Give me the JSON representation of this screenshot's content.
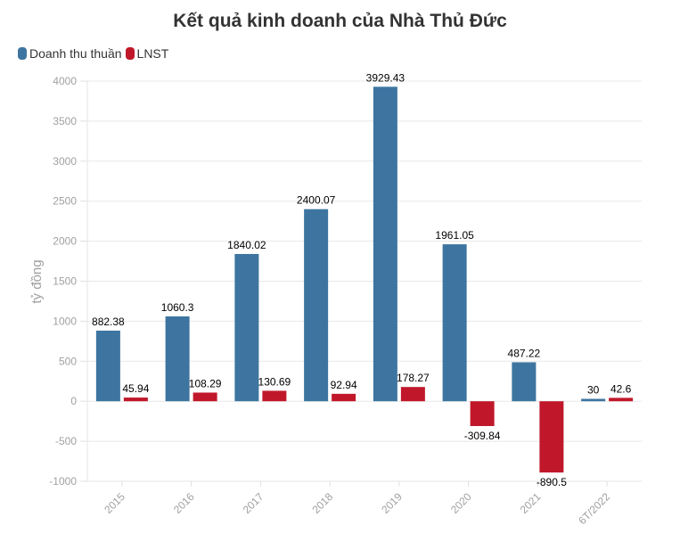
{
  "chart_data": {
    "type": "bar",
    "title": "Kết quả kinh doanh của Nhà Thủ Đức",
    "ylabel": "tỷ đồng",
    "xlabel": "",
    "ylim": [
      -1000,
      4000
    ],
    "yticks": [
      -1000,
      -500,
      0,
      500,
      1000,
      1500,
      2000,
      2500,
      3000,
      3500,
      4000
    ],
    "grid": true,
    "legend": "top-left",
    "categories": [
      "2015",
      "2016",
      "2017",
      "2018",
      "2019",
      "2020",
      "2021",
      "6T/2022"
    ],
    "series": [
      {
        "name": "Doanh thu thuần",
        "color": "#3d75a0",
        "values": [
          882.38,
          1060.3,
          1840.02,
          2400.07,
          3929.43,
          1961.05,
          487.22,
          30
        ]
      },
      {
        "name": "LNST",
        "color": "#c0182a",
        "values": [
          45.94,
          108.29,
          130.69,
          92.94,
          178.27,
          -309.84,
          -890.5,
          42.6
        ]
      }
    ]
  }
}
